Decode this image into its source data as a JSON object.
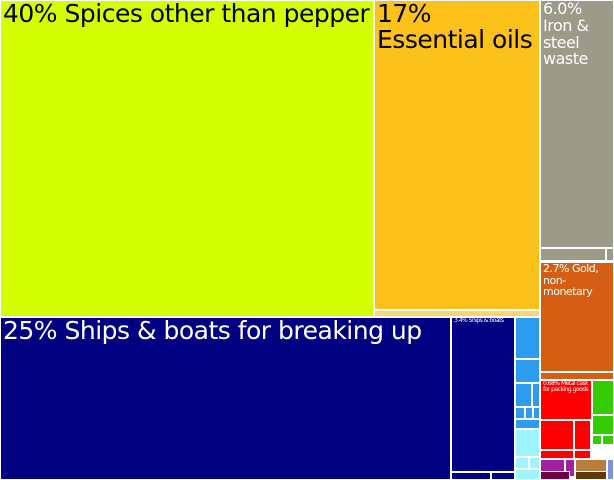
{
  "chart_data": {
    "type": "treemap",
    "unit": "%",
    "items": [
      {
        "label": "40% Spices other than pepper",
        "value": 40,
        "color": "#d4ff00"
      },
      {
        "label": "17% Essential oils",
        "value": 17,
        "color": "#fcc21b"
      },
      {
        "label": "6.0% Iron & steel waste",
        "value": 6.0,
        "color": "#9c9a89"
      },
      {
        "label": "2.7% Gold, non-monetary",
        "value": 2.7,
        "color": "#d45f14"
      },
      {
        "label": "25% Ships & boats for breaking up",
        "value": 25,
        "color": "#000080"
      },
      {
        "label": "3.4% Ships & boats",
        "value": 3.4,
        "color": "#000080"
      },
      {
        "label": "0.68% Metal cask for packing goods",
        "value": 0.68,
        "color": "#ff0000"
      }
    ]
  }
}
